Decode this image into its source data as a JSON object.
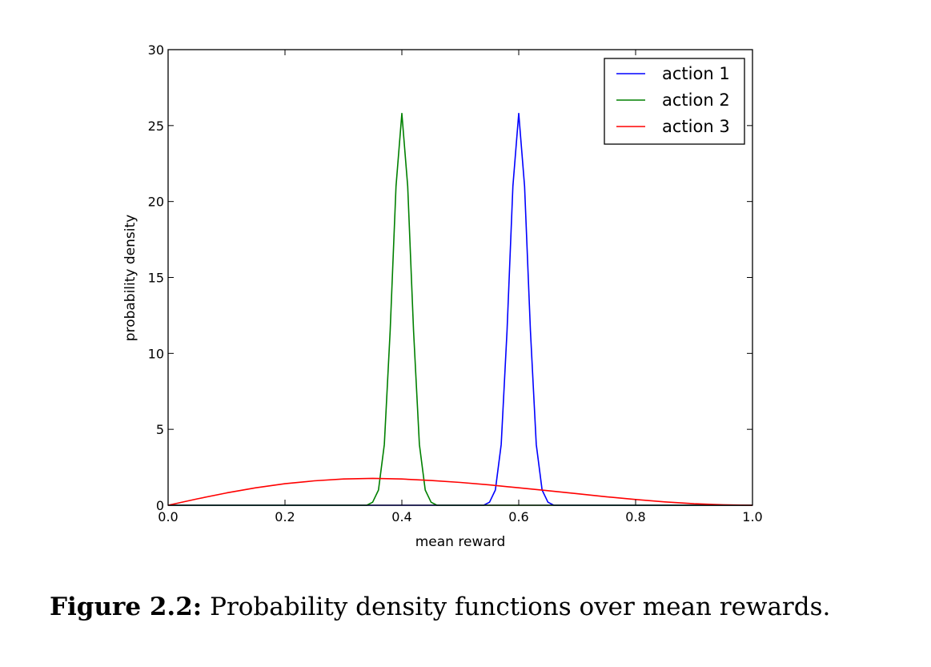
{
  "chart_data": {
    "type": "line",
    "xlabel": "mean reward",
    "ylabel": "probability density",
    "xlim": [
      0.0,
      1.0
    ],
    "ylim": [
      0,
      30
    ],
    "xticks": [
      0.0,
      0.2,
      0.4,
      0.6,
      0.8,
      1.0
    ],
    "xtick_labels": [
      "0.0",
      "0.2",
      "0.4",
      "0.6",
      "0.8",
      "1.0"
    ],
    "yticks": [
      0,
      5,
      10,
      15,
      20,
      25,
      30
    ],
    "ytick_labels": [
      "0",
      "5",
      "10",
      "15",
      "20",
      "25",
      "30"
    ],
    "grid": false,
    "legend_position": "top-right",
    "series": [
      {
        "name": "action 1",
        "color": "#0000ff",
        "x": [
          0.0,
          0.54,
          0.55,
          0.56,
          0.57,
          0.58,
          0.59,
          0.6,
          0.61,
          0.62,
          0.63,
          0.64,
          0.65,
          0.66,
          1.0
        ],
        "y": [
          0,
          0,
          0.2,
          1.0,
          4.0,
          11.5,
          21.0,
          25.8,
          21.0,
          11.5,
          4.0,
          1.0,
          0.2,
          0,
          0
        ]
      },
      {
        "name": "action 2",
        "color": "#008000",
        "x": [
          0.0,
          0.34,
          0.35,
          0.36,
          0.37,
          0.38,
          0.39,
          0.4,
          0.41,
          0.42,
          0.43,
          0.44,
          0.45,
          0.46,
          1.0
        ],
        "y": [
          0,
          0,
          0.2,
          1.0,
          4.0,
          11.5,
          21.0,
          25.8,
          21.0,
          11.5,
          4.0,
          1.0,
          0.2,
          0,
          0
        ]
      },
      {
        "name": "action 3",
        "color": "#ff0000",
        "x": [
          0.0,
          0.05,
          0.1,
          0.15,
          0.2,
          0.25,
          0.3,
          0.35,
          0.4,
          0.45,
          0.5,
          0.55,
          0.6,
          0.65,
          0.7,
          0.75,
          0.8,
          0.85,
          0.9,
          0.95,
          1.0
        ],
        "y": [
          0,
          0.42,
          0.81,
          1.15,
          1.42,
          1.61,
          1.73,
          1.77,
          1.73,
          1.63,
          1.5,
          1.34,
          1.15,
          0.96,
          0.76,
          0.56,
          0.38,
          0.22,
          0.1,
          0.03,
          0
        ]
      }
    ]
  },
  "caption": {
    "label": "Figure 2.2:",
    "text": "Probability density functions over mean rewards."
  }
}
